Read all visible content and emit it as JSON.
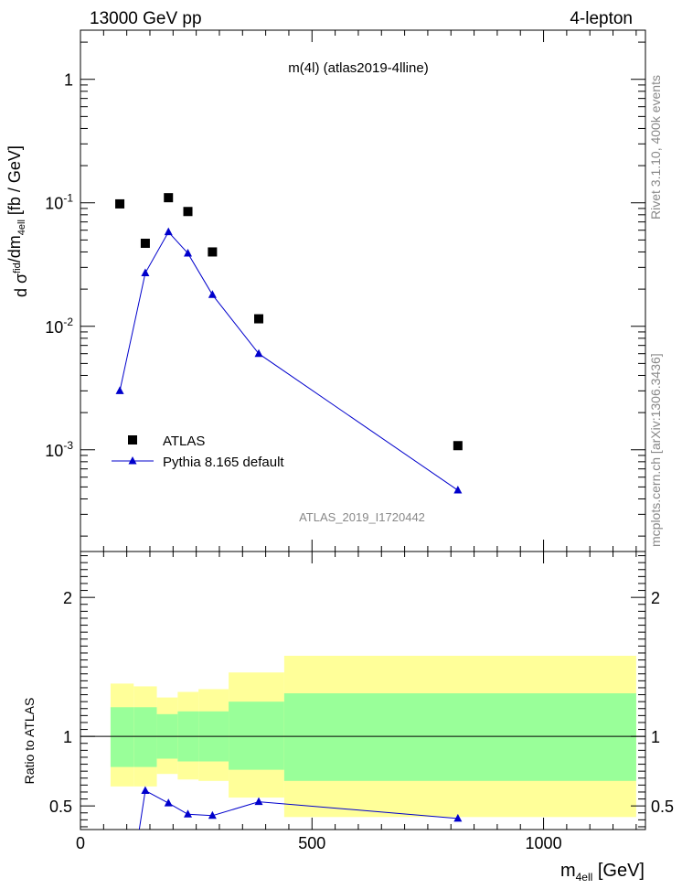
{
  "header": {
    "left": "13000 GeV pp",
    "right": "4-lepton"
  },
  "side_labels": {
    "rivet": "Rivet 3.1.10,  400k events",
    "source": "mcplots.cern.ch [arXiv:1306.3436]"
  },
  "watermark": "ATLAS_2019_I1720442",
  "chart_data": [
    {
      "type": "scatter",
      "title": "m(4l) (atlas2019-4lline)",
      "ylabel": "d σ^{fid}_{4ell}/dm_{4ell} [fb / GeV]",
      "yscale": "log",
      "ylim": [
        0.00015,
        2.5
      ],
      "xlim": [
        0,
        1220
      ],
      "y_tick_labels": [
        "1",
        "10^-1",
        "10^-2",
        "10^-3"
      ],
      "legend_position": "lower-left",
      "series": [
        {
          "name": "ATLAS",
          "marker": "square",
          "color": "#000000",
          "x": [
            85,
            140,
            190,
            232,
            285,
            385,
            815
          ],
          "y": [
            0.098,
            0.047,
            0.11,
            0.085,
            0.04,
            0.0115,
            0.00108
          ]
        },
        {
          "name": "Pythia 8.165 default",
          "marker": "triangle",
          "line": true,
          "color": "#0000cc",
          "x": [
            85,
            140,
            190,
            232,
            285,
            385,
            815
          ],
          "y": [
            0.003,
            0.027,
            0.058,
            0.039,
            0.018,
            0.006,
            0.00047
          ]
        }
      ]
    },
    {
      "type": "line",
      "xlabel": "m_{4ell} [GeV]",
      "ylabel": "Ratio to ATLAS",
      "xlim": [
        0,
        1220
      ],
      "ylim": [
        0.33,
        2.33
      ],
      "x_ticks": [
        0,
        500,
        1000
      ],
      "y_ticks": [
        0.5,
        1,
        2
      ],
      "reference_line": 1,
      "colors": {
        "band_outer": "#ffff99",
        "band_inner": "#99ff99",
        "mc": "#0000cc"
      },
      "bands": [
        {
          "x_low": 65,
          "x_high": 115,
          "inner": [
            0.78,
            1.21
          ],
          "outer": [
            0.64,
            1.38
          ]
        },
        {
          "x_low": 115,
          "x_high": 165,
          "inner": [
            0.78,
            1.21
          ],
          "outer": [
            0.64,
            1.36
          ]
        },
        {
          "x_low": 165,
          "x_high": 210,
          "inner": [
            0.84,
            1.16
          ],
          "outer": [
            0.73,
            1.28
          ]
        },
        {
          "x_low": 210,
          "x_high": 255,
          "inner": [
            0.82,
            1.18
          ],
          "outer": [
            0.69,
            1.32
          ]
        },
        {
          "x_low": 255,
          "x_high": 320,
          "inner": [
            0.82,
            1.18
          ],
          "outer": [
            0.68,
            1.34
          ]
        },
        {
          "x_low": 320,
          "x_high": 440,
          "inner": [
            0.76,
            1.25
          ],
          "outer": [
            0.56,
            1.46
          ]
        },
        {
          "x_low": 440,
          "x_high": 1200,
          "inner": [
            0.68,
            1.31
          ],
          "outer": [
            0.42,
            1.58
          ]
        }
      ],
      "series": [
        {
          "name": "Pythia 8.165 default",
          "marker": "triangle",
          "x": [
            140,
            190,
            232,
            285,
            385,
            815
          ],
          "y": [
            0.61,
            0.52,
            0.44,
            0.43,
            0.53,
            0.41
          ],
          "entry_from_below": {
            "x": 127,
            "y": 0.33
          }
        }
      ]
    }
  ]
}
